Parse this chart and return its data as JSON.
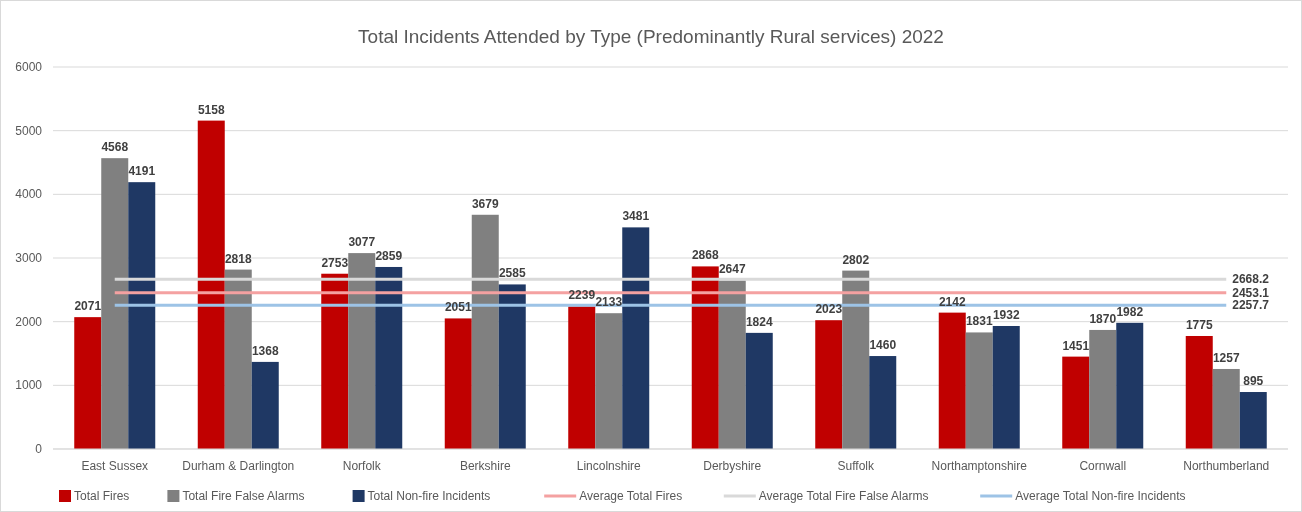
{
  "chart_data": {
    "type": "bar",
    "title": "Total Incidents Attended by Type (Predominantly Rural services) 2022",
    "categories": [
      "East Sussex",
      "Durham & Darlington",
      "Norfolk",
      "Berkshire",
      "Lincolnshire",
      "Derbyshire",
      "Suffolk",
      "Northamptonshire",
      "Cornwall",
      "Northumberland"
    ],
    "series": [
      {
        "name": "Total Fires",
        "color": "#c00000",
        "values": [
          2071,
          5158,
          2753,
          2051,
          2239,
          2868,
          2023,
          2142,
          1451,
          1775
        ],
        "value_labels": [
          "2071",
          "5158",
          "2753",
          "2051",
          "2239",
          "2868",
          "2023",
          "2142",
          "1451",
          "1775"
        ]
      },
      {
        "name": "Total Fire False Alarms",
        "color": "#808080",
        "values": [
          4568,
          2818,
          3077,
          3679,
          2133,
          2647,
          2802,
          1831,
          1870,
          1257
        ],
        "value_labels": [
          "4568",
          "2818",
          "3077",
          "3679",
          "2133",
          "2647",
          "2802",
          "1831",
          "1870",
          "1257"
        ]
      },
      {
        "name": "Total Non-fire Incidents",
        "color": "#1f3864",
        "values": [
          4191,
          1368,
          2859,
          2585,
          3481,
          1824,
          1460,
          1932,
          1982,
          895
        ],
        "value_labels": [
          "4191",
          "1368",
          "2859",
          "2585",
          "3481",
          "1824",
          "1460",
          "1932",
          "1982",
          "895"
        ]
      },
      {
        "name": "Average Total Fires",
        "type": "line",
        "color": "#f4a1a1",
        "values": [
          2453.1,
          2453.1,
          2453.1,
          2453.1,
          2453.1,
          2453.1,
          2453.1,
          2453.1,
          2453.1,
          2453.1
        ],
        "value_labels": [
          null,
          null,
          null,
          null,
          null,
          null,
          null,
          null,
          null,
          "2453.1"
        ]
      },
      {
        "name": "Average Total Fire False Alarms",
        "type": "line",
        "color": "#d9d9d9",
        "values": [
          2668.2,
          2668.2,
          2668.2,
          2668.2,
          2668.2,
          2668.2,
          2668.2,
          2668.2,
          2668.2,
          2668.2
        ],
        "value_labels": [
          null,
          null,
          null,
          null,
          null,
          null,
          null,
          null,
          null,
          "2668.2"
        ]
      },
      {
        "name": "Average Total Non-fire Incidents",
        "type": "line",
        "color": "#9dc3e6",
        "values": [
          2257.7,
          2257.7,
          2257.7,
          2257.7,
          2257.7,
          2257.7,
          2257.7,
          2257.7,
          2257.7,
          2257.7
        ],
        "value_labels": [
          null,
          null,
          null,
          null,
          null,
          null,
          null,
          null,
          null,
          "2257.7"
        ]
      }
    ],
    "ylim": [
      0,
      6000
    ],
    "yticks": [
      0,
      1000,
      2000,
      3000,
      4000,
      5000,
      6000
    ],
    "grid": "y",
    "legend": "bottom",
    "line_style": "solid",
    "marker": "none"
  }
}
